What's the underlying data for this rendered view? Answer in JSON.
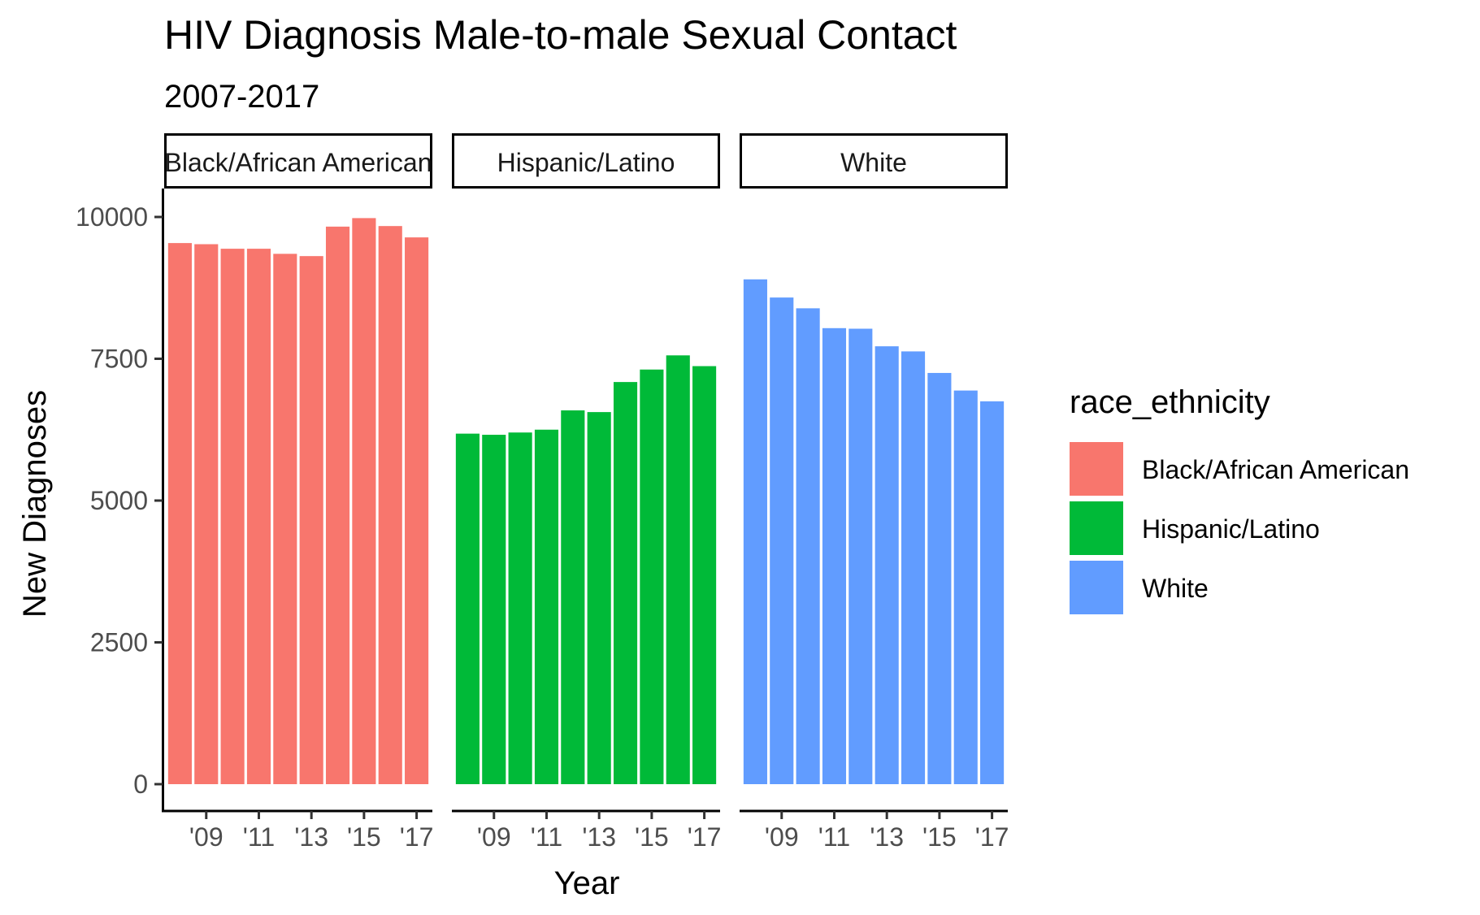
{
  "chart_data": {
    "type": "bar",
    "title": "HIV Diagnosis Male-to-male Sexual Contact",
    "subtitle": "2007-2017",
    "xlabel": "Year",
    "ylabel": "New Diagnoses",
    "ylim": [
      0,
      10000
    ],
    "yticks": [
      0,
      2500,
      5000,
      7500,
      10000
    ],
    "ytick_labels": [
      "0",
      "2500",
      "5000",
      "7500",
      "10000"
    ],
    "x": [
      2008,
      2009,
      2010,
      2011,
      2012,
      2013,
      2014,
      2015,
      2016,
      2017
    ],
    "xticks": [
      2009,
      2011,
      2013,
      2015,
      2017
    ],
    "xtick_labels": [
      "'09",
      "'11",
      "'13",
      "'15",
      "'17"
    ],
    "grid": false,
    "legend": {
      "title": "race_ethnicity",
      "placement": "right"
    },
    "series": [
      {
        "name": "Black/African American",
        "strip_label": "Black/African American",
        "color": "#F8766D",
        "values": [
          9540,
          9520,
          9440,
          9440,
          9350,
          9310,
          9830,
          9980,
          9840,
          9640
        ]
      },
      {
        "name": "Hispanic/Latino",
        "strip_label": "Hispanic/Latino",
        "color": "#00BA38",
        "values": [
          6180,
          6160,
          6200,
          6250,
          6590,
          6560,
          7090,
          7310,
          7560,
          7370
        ]
      },
      {
        "name": "White",
        "strip_label": "White",
        "color": "#619CFF",
        "values": [
          8900,
          8580,
          8390,
          8040,
          8030,
          7720,
          7630,
          7250,
          6940,
          6750
        ]
      }
    ]
  }
}
